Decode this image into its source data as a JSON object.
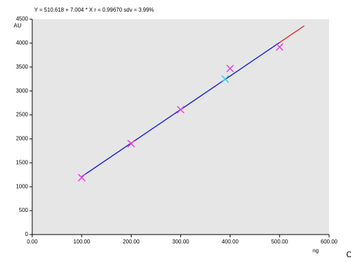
{
  "chart_data": {
    "type": "scatter",
    "title": "Y = 510.618 + 7.004 * X   r = 0.99670    sdv = 3.99%",
    "y_label": "AU",
    "x_label": "ng",
    "panel_label": "C",
    "background": "#e6e6e6",
    "xlim": [
      0,
      600
    ],
    "xticks": [
      {
        "value": 0,
        "label": "0.00"
      },
      {
        "value": 100,
        "label": "100.00"
      },
      {
        "value": 200,
        "label": "200.00"
      },
      {
        "value": 300,
        "label": "300.00"
      },
      {
        "value": 400,
        "label": "400.00"
      },
      {
        "value": 500,
        "label": "500.00"
      },
      {
        "value": 600,
        "label": "600.00"
      }
    ],
    "ylim": [
      0,
      4500
    ],
    "yticks": [
      0,
      500,
      1000,
      1500,
      2000,
      2500,
      3000,
      3500,
      4000,
      4500
    ],
    "series": [
      {
        "color": "#e040e0",
        "x": [
          100,
          200,
          300,
          400,
          500
        ],
        "values": [
          1190,
          1900,
          2610,
          3470,
          3920
        ]
      },
      {
        "color": "#30d0e0",
        "x": [
          390
        ],
        "values": [
          3250
        ]
      }
    ],
    "fit_lines": [
      {
        "color": "#2020e0",
        "x": [
          100,
          500
        ],
        "values": [
          1211,
          4013
        ]
      },
      {
        "color": "#e03030",
        "x": [
          500,
          550
        ],
        "values": [
          4013,
          4363
        ]
      }
    ]
  }
}
